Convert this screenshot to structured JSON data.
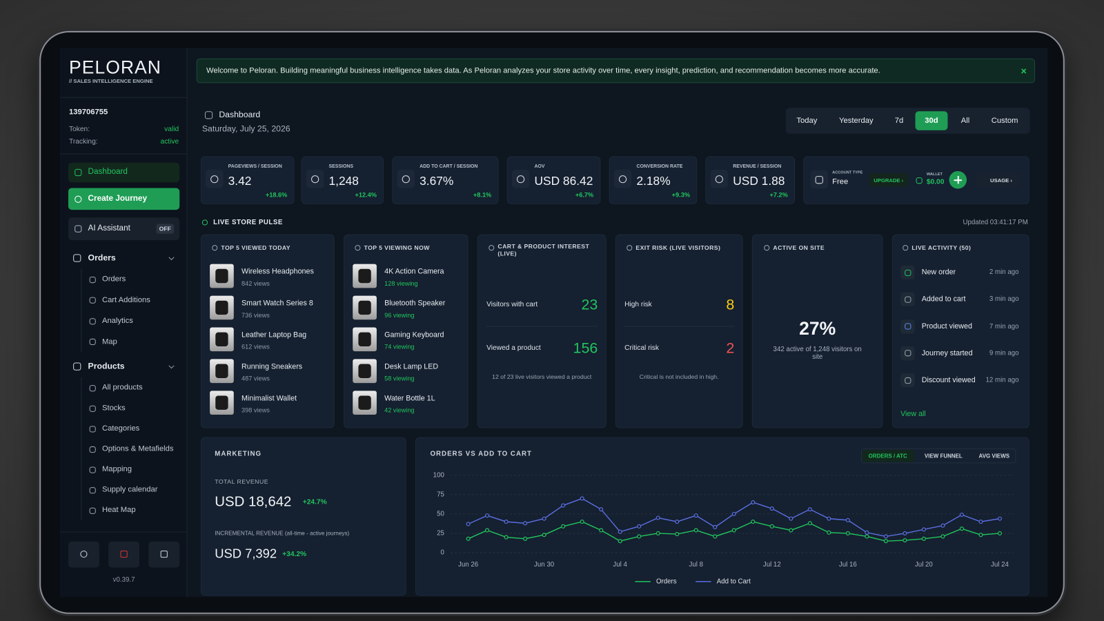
{
  "banner": {
    "text": "Welcome to Peloran. Building meaningful business intelligence takes data. As Peloran analyzes your store activity over time, every insight, prediction, and recommendation becomes more accurate.",
    "close": "×"
  },
  "sidebar": {
    "brand": "PELORAN",
    "tagline": "// SALES INTELLIGENCE ENGINE",
    "store_id": "139706755",
    "status": [
      {
        "label": "Token:",
        "value": "valid"
      },
      {
        "label": "Tracking:",
        "value": "active"
      }
    ],
    "nav": [
      {
        "label": "Dashboard"
      },
      {
        "label": "Create Journey"
      },
      {
        "label": "AI Assistant",
        "badge": "OFF"
      }
    ],
    "groups": [
      {
        "label": "Orders",
        "items": [
          "Orders",
          "Cart Additions",
          "Analytics",
          "Map"
        ]
      },
      {
        "label": "Products",
        "items": [
          "All products",
          "Stocks",
          "Categories",
          "Options & Metafields",
          "Mapping",
          "Supply calendar",
          "Heat Map"
        ]
      }
    ],
    "version": "v0.39.7"
  },
  "header": {
    "title": "Dashboard",
    "date": "Saturday, July 25, 2026",
    "ranges": [
      "Today",
      "Yesterday",
      "7d",
      "30d",
      "All",
      "Custom"
    ],
    "active_range": 3
  },
  "kpis": [
    {
      "label": "PAGEVIEWS / SESSION",
      "value": "3.42",
      "change": "+18.6%"
    },
    {
      "label": "SESSIONS",
      "value": "1,248",
      "change": "+12.4%"
    },
    {
      "label": "ADD TO CART / SESSION",
      "value": "3.67%",
      "change": "+8.1%"
    },
    {
      "label": "AOV",
      "value": "USD 86.42",
      "change": "+6.7%"
    },
    {
      "label": "CONVERSION RATE",
      "value": "2.18%",
      "change": "+9.3%"
    },
    {
      "label": "REVENUE / SESSION",
      "value": "USD 1.88",
      "change": "+7.2%"
    }
  ],
  "account": {
    "type_label": "ACCOUNT TYPE",
    "type": "Free",
    "upgrade": "UPGRADE ›",
    "wallet_label": "WALLET",
    "wallet": "$0.00",
    "usage": "USAGE ›"
  },
  "pulse": {
    "title": "LIVE STORE PULSE",
    "updated": "Updated 03:41:17 PM"
  },
  "top_viewed": {
    "title": "TOP 5 VIEWED TODAY",
    "items": [
      {
        "name": "Wireless Headphones",
        "meta": "842 views"
      },
      {
        "name": "Smart Watch Series 8",
        "meta": "736 views"
      },
      {
        "name": "Leather Laptop Bag",
        "meta": "612 views"
      },
      {
        "name": "Running Sneakers",
        "meta": "487 views"
      },
      {
        "name": "Minimalist Wallet",
        "meta": "398 views"
      }
    ]
  },
  "viewing_now": {
    "title": "TOP 5 VIEWING NOW",
    "items": [
      {
        "name": "4K Action Camera",
        "meta": "128 viewing"
      },
      {
        "name": "Bluetooth Speaker",
        "meta": "96 viewing"
      },
      {
        "name": "Gaming Keyboard",
        "meta": "74 viewing"
      },
      {
        "name": "Desk Lamp LED",
        "meta": "58 viewing"
      },
      {
        "name": "Water Bottle 1L",
        "meta": "42 viewing"
      }
    ]
  },
  "cart_interest": {
    "title": "CART & PRODUCT INTEREST (LIVE)",
    "rows": [
      {
        "label": "Visitors with cart",
        "value": "23"
      },
      {
        "label": "Viewed a product",
        "value": "156"
      }
    ],
    "note": "12 of 23 live visitors viewed a product"
  },
  "exit_risk": {
    "title": "EXIT RISK (LIVE VISITORS)",
    "rows": [
      {
        "label": "High risk",
        "value": "8"
      },
      {
        "label": "Critical risk",
        "value": "2"
      }
    ],
    "note": "Critical is not included in high."
  },
  "active": {
    "title": "ACTIVE ON SITE",
    "value": "27%",
    "text": "342 active of 1,248 visitors on site"
  },
  "live_activity": {
    "title": "LIVE ACTIVITY (50)",
    "items": [
      {
        "label": "New order",
        "time": "2 min ago"
      },
      {
        "label": "Added to cart",
        "time": "3 min ago"
      },
      {
        "label": "Product viewed",
        "time": "7 min ago"
      },
      {
        "label": "Journey started",
        "time": "9 min ago"
      },
      {
        "label": "Discount viewed",
        "time": "12 min ago"
      }
    ],
    "view_all": "View all"
  },
  "marketing": {
    "title": "MARKETING",
    "total_label": "TOTAL REVENUE",
    "total": "USD 18,642",
    "total_change": "+24.7%",
    "incr_label": "INCREMENTAL REVENUE (all-time - active journeys)",
    "incr": "USD 7,392",
    "incr_change": "+34.2%"
  },
  "chart_tabs": [
    "ORDERS / ATC",
    "VIEW FUNNEL",
    "AVG VIEWS"
  ],
  "chart_data": {
    "type": "line",
    "title": "ORDERS VS ADD TO CART",
    "categories": [
      "Jun 26",
      null,
      null,
      null,
      "Jun 30",
      null,
      null,
      null,
      "Jul 4",
      null,
      null,
      null,
      "Jul 8",
      null,
      null,
      null,
      "Jul 12",
      null,
      null,
      null,
      "Jul 16",
      null,
      null,
      null,
      "Jul 20",
      null,
      null,
      null,
      "Jul 24"
    ],
    "series": [
      {
        "name": "Orders",
        "color": "#22c55e",
        "values": [
          18,
          29,
          20,
          18,
          23,
          34,
          40,
          29,
          15,
          21,
          25,
          24,
          29,
          21,
          29,
          40,
          34,
          29,
          38,
          26,
          25,
          21,
          15,
          16,
          18,
          21,
          31,
          23,
          25
        ]
      },
      {
        "name": "Add to Cart",
        "color": "#5b6ee1",
        "values": [
          37,
          48,
          40,
          38,
          44,
          61,
          70,
          56,
          27,
          34,
          45,
          40,
          48,
          33,
          50,
          65,
          57,
          44,
          56,
          44,
          42,
          26,
          21,
          25,
          30,
          35,
          49,
          40,
          44
        ]
      }
    ],
    "ylim": [
      0,
      100
    ],
    "yticks": [
      0,
      25,
      50,
      75,
      100
    ],
    "grid": true,
    "legend": "bottom"
  }
}
